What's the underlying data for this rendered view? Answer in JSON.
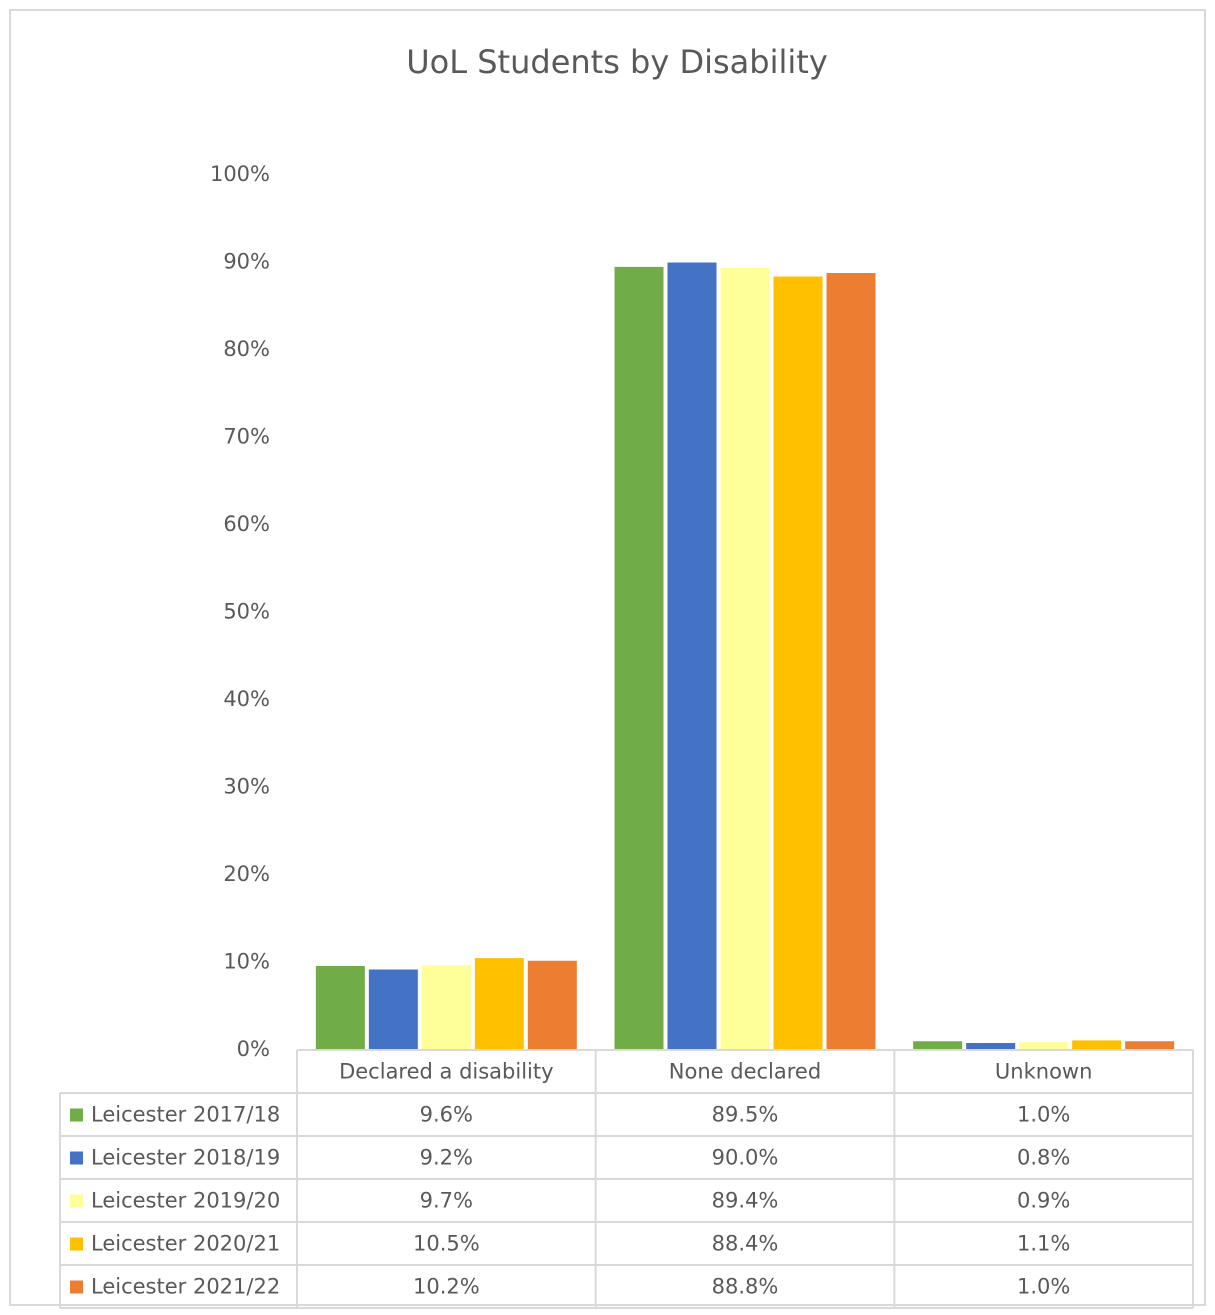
{
  "chart_data": {
    "type": "bar",
    "title": "UoL Students by Disability",
    "categories": [
      "Declared a disability",
      "None declared",
      "Unknown"
    ],
    "series": [
      {
        "name": "Leicester 2017/18",
        "color": "#70ad47",
        "values": [
          9.6,
          89.5,
          1.0
        ],
        "value_labels": [
          "9.6%",
          "89.5%",
          "1.0%"
        ]
      },
      {
        "name": "Leicester 2018/19",
        "color": "#4472c4",
        "values": [
          9.2,
          90.0,
          0.8
        ],
        "value_labels": [
          "9.2%",
          "90.0%",
          "0.8%"
        ]
      },
      {
        "name": "Leicester 2019/20",
        "color": "#ffff99",
        "values": [
          9.7,
          89.4,
          0.9
        ],
        "value_labels": [
          "9.7%",
          "89.4%",
          "0.9%"
        ]
      },
      {
        "name": "Leicester 2020/21",
        "color": "#ffc000",
        "values": [
          10.5,
          88.4,
          1.1
        ],
        "value_labels": [
          "10.5%",
          "88.4%",
          "1.1%"
        ]
      },
      {
        "name": "Leicester 2021/22",
        "color": "#ed7d31",
        "values": [
          10.2,
          88.8,
          1.0
        ],
        "value_labels": [
          "10.2%",
          "88.8%",
          "1.0%"
        ]
      }
    ],
    "ylim": [
      0,
      100
    ],
    "yticks": [
      {
        "value": 0,
        "label": "0%"
      },
      {
        "value": 10,
        "label": "10%"
      },
      {
        "value": 20,
        "label": "20%"
      },
      {
        "value": 30,
        "label": "30%"
      },
      {
        "value": 40,
        "label": "40%"
      },
      {
        "value": 50,
        "label": "50%"
      },
      {
        "value": 60,
        "label": "60%"
      },
      {
        "value": 70,
        "label": "70%"
      },
      {
        "value": 80,
        "label": "80%"
      },
      {
        "value": 90,
        "label": "90%"
      },
      {
        "value": 100,
        "label": "100%"
      }
    ],
    "grid": false
  }
}
